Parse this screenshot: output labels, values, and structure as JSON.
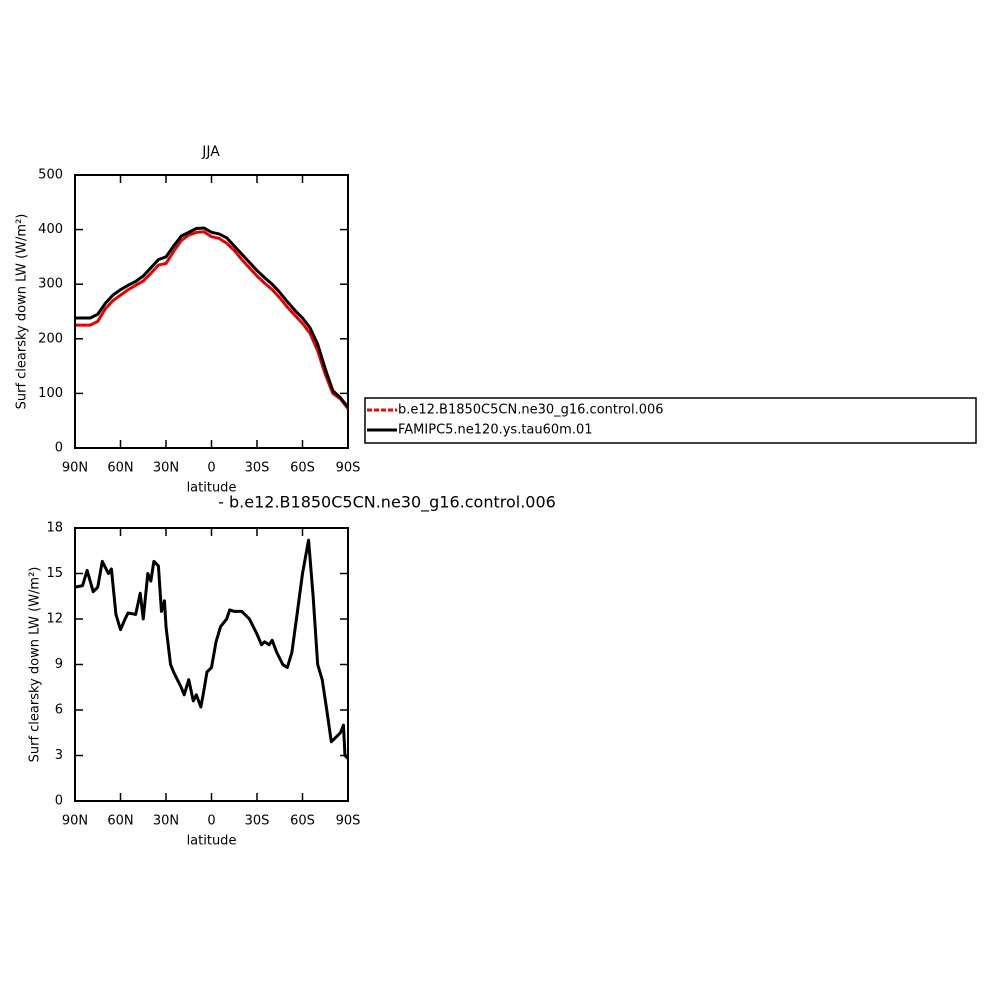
{
  "chart_data": [
    {
      "type": "line",
      "title": "JJA",
      "xlabel": "latitude",
      "ylabel": "Surf clearsky down LW (W/m²)",
      "x": [
        90,
        85,
        80,
        75,
        70,
        65,
        60,
        55,
        50,
        45,
        40,
        35,
        30,
        25,
        20,
        15,
        10,
        5,
        0,
        -5,
        -10,
        -15,
        -20,
        -25,
        -30,
        -35,
        -40,
        -45,
        -50,
        -55,
        -60,
        -65,
        -70,
        -75,
        -80,
        -85,
        -90
      ],
      "series": [
        {
          "name": "b.e12.B1850C5CN.ne30_g16.control.006",
          "color": "#ff0000",
          "dashed": true,
          "values": [
            225,
            225,
            225,
            232,
            255,
            270,
            280,
            290,
            298,
            306,
            320,
            335,
            338,
            360,
            380,
            390,
            395,
            396,
            387,
            384,
            375,
            362,
            345,
            330,
            315,
            302,
            290,
            275,
            258,
            243,
            228,
            210,
            178,
            135,
            100,
            90,
            72
          ]
        },
        {
          "name": "FAMIPC5.ne120.ys.tau60m.01",
          "color": "#000000",
          "values": [
            238,
            238,
            238,
            245,
            265,
            280,
            290,
            298,
            305,
            315,
            330,
            345,
            350,
            370,
            388,
            395,
            402,
            403,
            395,
            392,
            385,
            370,
            355,
            340,
            325,
            312,
            300,
            285,
            268,
            252,
            238,
            220,
            190,
            145,
            105,
            92,
            75
          ]
        }
      ],
      "xlim": [
        90,
        -90
      ],
      "ylim": [
        0,
        500
      ],
      "xticks": [
        {
          "value": 90,
          "label": "90N"
        },
        {
          "value": 60,
          "label": "60N"
        },
        {
          "value": 30,
          "label": "30N"
        },
        0,
        {
          "value": -30,
          "label": "30S"
        },
        {
          "value": -60,
          "label": "60S"
        },
        {
          "value": -90,
          "label": "90S"
        }
      ],
      "yticks": [
        0,
        100,
        200,
        300,
        400,
        500
      ],
      "legend": "right"
    },
    {
      "type": "line",
      "title": "- b.e12.B1850C5CN.ne30_g16.control.006",
      "xlabel": "latitude",
      "ylabel": "Surf clearsky down LW (W/m²)",
      "x": [
        90,
        85,
        82,
        78,
        75,
        72,
        68,
        66,
        63,
        60,
        57,
        55,
        50,
        47,
        45,
        42,
        40,
        38,
        35,
        33,
        31,
        30,
        27,
        25,
        20,
        18,
        15,
        12,
        10,
        7,
        5,
        3,
        0,
        -3,
        -6,
        -10,
        -12,
        -15,
        -20,
        -25,
        -30,
        -33,
        -35,
        -38,
        -40,
        -43,
        -47,
        -50,
        -53,
        -56,
        -60,
        -64,
        -67,
        -70,
        -73,
        -76,
        -79,
        -82,
        -85,
        -87,
        -88,
        -90
      ],
      "series": [
        {
          "color": "#000000",
          "values": [
            14.1,
            14.2,
            15.2,
            13.8,
            14.1,
            15.8,
            15.0,
            15.3,
            12.3,
            11.3,
            12.0,
            12.4,
            12.3,
            13.7,
            12.0,
            15.0,
            14.5,
            15.8,
            15.5,
            12.5,
            13.2,
            11.5,
            9.0,
            8.5,
            7.5,
            7.0,
            8.0,
            6.6,
            7.0,
            6.2,
            7.3,
            8.5,
            8.8,
            10.5,
            11.5,
            12.0,
            12.6,
            12.5,
            12.5,
            12.0,
            11.0,
            10.3,
            10.5,
            10.3,
            10.6,
            9.8,
            9.0,
            8.8,
            9.8,
            12.0,
            15.0,
            17.2,
            13.5,
            9.0,
            8.0,
            6.0,
            3.9,
            4.2,
            4.5,
            5.0,
            3.0,
            2.8
          ]
        }
      ],
      "xlim": [
        90,
        -90
      ],
      "ylim": [
        0,
        18
      ],
      "xticks": [
        {
          "value": 90,
          "label": "90N"
        },
        {
          "value": 60,
          "label": "60N"
        },
        {
          "value": 30,
          "label": "30N"
        },
        0,
        {
          "value": -30,
          "label": "30S"
        },
        {
          "value": -60,
          "label": "60S"
        },
        {
          "value": -90,
          "label": "90S"
        }
      ],
      "yticks": [
        0,
        3,
        6,
        9,
        12,
        15,
        18
      ]
    }
  ]
}
